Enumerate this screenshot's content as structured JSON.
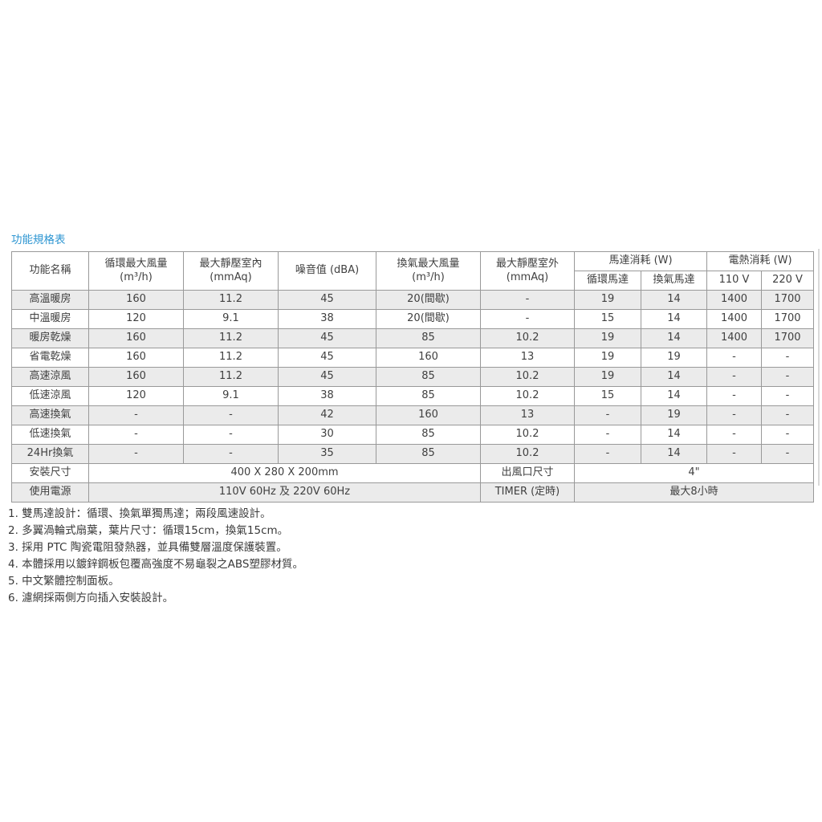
{
  "page": {
    "title": "功能規格表",
    "title_color": "#2e96d2",
    "stripe_color": "#ebebeb",
    "border_color": "#999999",
    "text_color": "#404040"
  },
  "table": {
    "header": {
      "function_name": "功能名稱",
      "circulation_airflow": "循環最大風量\n(m³/h)",
      "static_pressure_indoor": "最大靜壓室內\n(mmAq)",
      "noise_level": "噪音值 (dBA)",
      "ventilation_airflow": "換氣最大風量\n(m³/h)",
      "static_pressure_outdoor": "最大靜壓室外\n(mmAq)",
      "motor_group": "馬達消耗 (W)",
      "motor_circulation": "循環馬達",
      "motor_ventilation": "換氣馬達",
      "heater_group": "電熱消耗 (W)",
      "heater_110v": "110 V",
      "heater_220v": "220 V"
    },
    "rows": [
      {
        "cells": [
          "高溫暖房",
          "160",
          "11.2",
          "45",
          "20(間歇)",
          "-",
          "19",
          "14",
          "1400",
          "1700"
        ]
      },
      {
        "cells": [
          "中溫暖房",
          "120",
          "9.1",
          "38",
          "20(間歇)",
          "-",
          "15",
          "14",
          "1400",
          "1700"
        ]
      },
      {
        "cells": [
          "暖房乾燥",
          "160",
          "11.2",
          "45",
          "85",
          "10.2",
          "19",
          "14",
          "1400",
          "1700"
        ]
      },
      {
        "cells": [
          "省電乾燥",
          "160",
          "11.2",
          "45",
          "160",
          "13",
          "19",
          "19",
          "-",
          "-"
        ]
      },
      {
        "cells": [
          "高速涼風",
          "160",
          "11.2",
          "45",
          "85",
          "10.2",
          "19",
          "14",
          "-",
          "-"
        ]
      },
      {
        "cells": [
          "低速涼風",
          "120",
          "9.1",
          "38",
          "85",
          "10.2",
          "15",
          "14",
          "-",
          "-"
        ]
      },
      {
        "cells": [
          "高速換氣",
          "-",
          "-",
          "42",
          "160",
          "13",
          "-",
          "19",
          "-",
          "-"
        ]
      },
      {
        "cells": [
          "低速換氣",
          "-",
          "-",
          "30",
          "85",
          "10.2",
          "-",
          "14",
          "-",
          "-"
        ]
      },
      {
        "cells": [
          "24Hr換氣",
          "-",
          "-",
          "35",
          "85",
          "10.2",
          "-",
          "14",
          "-",
          "-"
        ]
      },
      {
        "cells": [
          "安裝尺寸",
          {
            "t": "400 X 280 X 200mm",
            "span": 4
          },
          {
            "t": "出風口尺寸"
          },
          {
            "t": "4\"",
            "span": 4
          }
        ]
      },
      {
        "cells": [
          "使用電源",
          {
            "t": "110V 60Hz 及 220V 60Hz",
            "span": 4
          },
          {
            "t": "TIMER (定時)"
          },
          {
            "t": "最大8小時",
            "span": 4
          }
        ]
      }
    ]
  },
  "notes": [
    "1. 雙馬達設計：循環、換氣單獨馬達；兩段風速設計。",
    "2. 多翼渦輪式扇葉，葉片尺寸：循環15cm，換氣15cm。",
    "3. 採用 PTC 陶瓷電阻發熱器，並具備雙層溫度保護裝置。",
    "4. 本體採用以鍍鋅鋼板包覆高強度不易龜裂之ABS塑膠材質。",
    "5. 中文繁體控制面板。",
    "6. 濾網採兩側方向插入安裝設計。"
  ]
}
